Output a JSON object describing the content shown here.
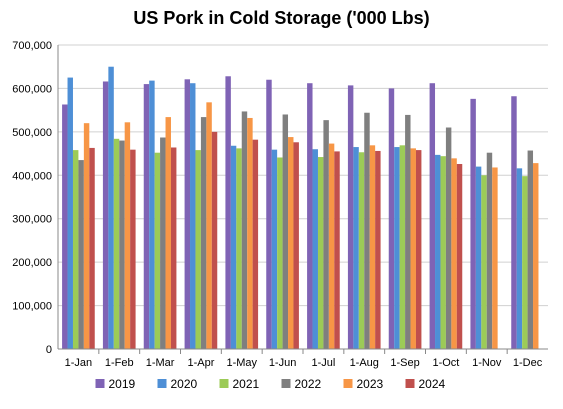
{
  "chart_data": {
    "type": "bar",
    "title": "US Pork in Cold Storage ('000 Lbs)",
    "xlabel": "",
    "ylabel": "",
    "ylim": [
      0,
      700000
    ],
    "yticks": [
      0,
      100000,
      200000,
      300000,
      400000,
      500000,
      600000,
      700000
    ],
    "ytick_labels": [
      "0",
      "100,000",
      "200,000",
      "300,000",
      "400,000",
      "500,000",
      "600,000",
      "700,000"
    ],
    "grid": true,
    "legend_position": "bottom",
    "categories": [
      "1-Jan",
      "1-Feb",
      "1-Mar",
      "1-Apr",
      "1-May",
      "1-Jun",
      "1-Jul",
      "1-Aug",
      "1-Sep",
      "1-Oct",
      "1-Nov",
      "1-Dec"
    ],
    "series": [
      {
        "name": "2019",
        "color": "#7f63b5",
        "values": [
          563000,
          616000,
          610000,
          621000,
          628000,
          620000,
          612000,
          607000,
          600000,
          612000,
          576000,
          582000
        ]
      },
      {
        "name": "2020",
        "color": "#4e8fd6",
        "values": [
          625000,
          650000,
          618000,
          612000,
          468000,
          459000,
          460000,
          465000,
          465000,
          447000,
          420000,
          416000
        ]
      },
      {
        "name": "2021",
        "color": "#9ccb57",
        "values": [
          458000,
          484000,
          452000,
          458000,
          462000,
          441000,
          442000,
          453000,
          469000,
          444000,
          400000,
          398000
        ]
      },
      {
        "name": "2022",
        "color": "#7f7f7f",
        "values": [
          435000,
          480000,
          487000,
          534000,
          547000,
          540000,
          527000,
          544000,
          539000,
          510000,
          452000,
          457000
        ]
      },
      {
        "name": "2023",
        "color": "#f79646",
        "values": [
          520000,
          522000,
          534000,
          568000,
          532000,
          488000,
          473000,
          469000,
          462000,
          439000,
          418000,
          428000
        ]
      },
      {
        "name": "2024",
        "color": "#c0504d",
        "values": [
          463000,
          459000,
          464000,
          500000,
          482000,
          476000,
          455000,
          456000,
          458000,
          426000,
          null,
          null
        ]
      }
    ]
  }
}
